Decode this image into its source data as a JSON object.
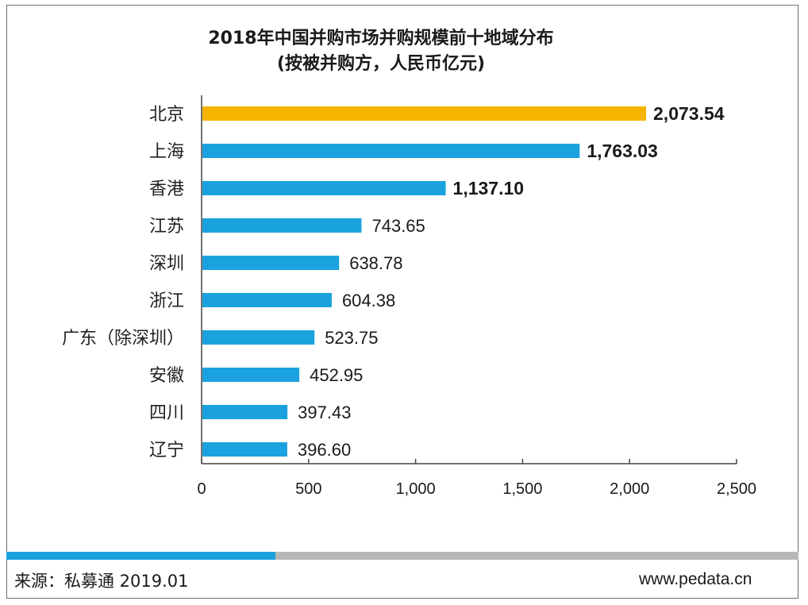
{
  "chart_data": {
    "type": "bar",
    "orientation": "horizontal",
    "title": "2018年中国并购市场并购规模前十地域分布",
    "subtitle": "(按被并购方，人民币亿元)",
    "categories": [
      "北京",
      "上海",
      "香港",
      "江苏",
      "深圳",
      "浙江",
      "广东（除深圳）",
      "安徽",
      "四川",
      "辽宁"
    ],
    "values": [
      2073.54,
      1763.03,
      1137.1,
      743.65,
      638.78,
      604.38,
      523.75,
      452.95,
      397.43,
      396.6
    ],
    "value_labels": [
      "2,073.54",
      "1,763.03",
      "1,137.10",
      "743.65",
      "638.78",
      "604.38",
      "523.75",
      "452.95",
      "397.43",
      "396.60"
    ],
    "xlim": [
      0,
      2500
    ],
    "xticks": [
      0,
      500,
      1000,
      1500,
      2000,
      2500
    ],
    "xtick_labels": [
      "0",
      "500",
      "1,000",
      "1,500",
      "2,000",
      "2,500"
    ],
    "colors": {
      "highlight": "#f5b400",
      "bar": "#1ba2de"
    },
    "highlight_index": 0,
    "bold_label_count": 3
  },
  "footer": {
    "source": "来源：私募通 2019.01",
    "site": "www.pedata.cn",
    "progress": 0.34,
    "progress_color": "#1ba2de",
    "track_color": "#b7b7b7"
  }
}
